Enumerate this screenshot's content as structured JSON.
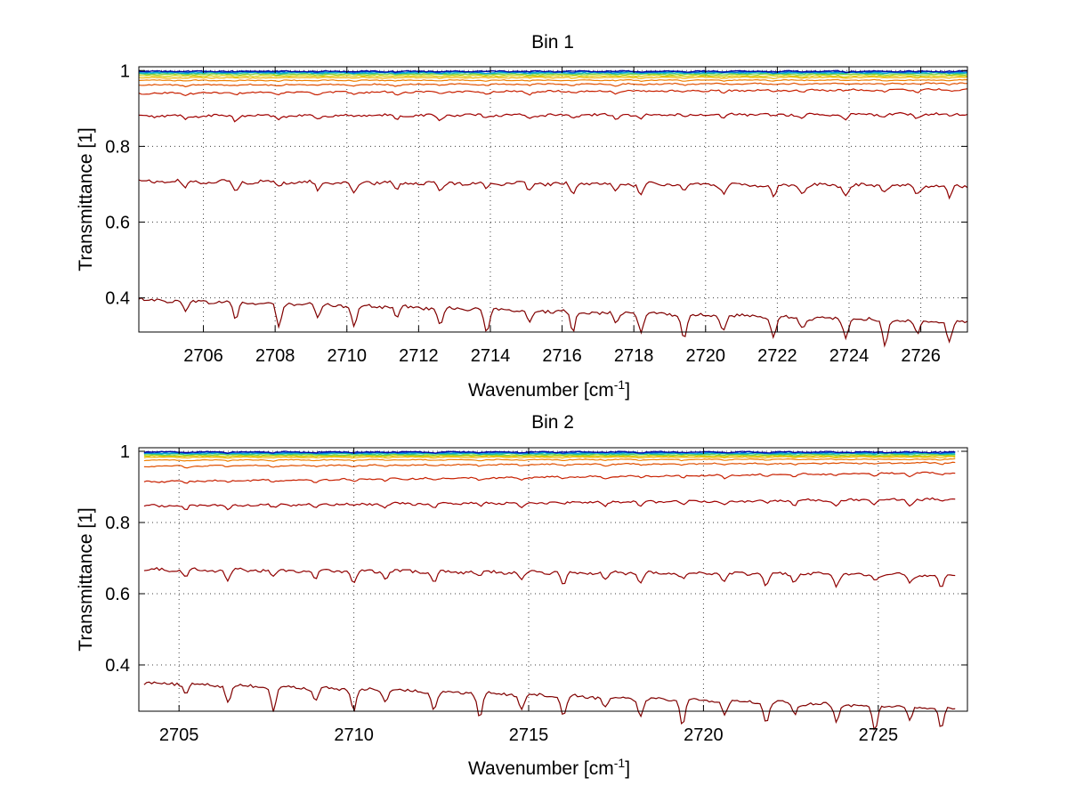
{
  "chart_data": [
    {
      "type": "line",
      "title": "Bin 1",
      "xlabel": "Wavenumber [cm",
      "xlabel_sup": "-1",
      "xlabel_close": "]",
      "ylabel": "Transmittance [1]",
      "xlim": [
        2704.2,
        2727.3
      ],
      "ylim": [
        0.31,
        1.01
      ],
      "xticks": [
        2706,
        2708,
        2710,
        2712,
        2714,
        2716,
        2718,
        2720,
        2722,
        2724,
        2726
      ],
      "xtick_labels": [
        "2706",
        "2708",
        "2710",
        "2712",
        "2714",
        "2716",
        "2718",
        "2720",
        "2722",
        "2724",
        "2726"
      ],
      "yticks": [
        0.4,
        0.6,
        0.8,
        1.0
      ],
      "ytick_labels": [
        "0.4",
        "0.6",
        "0.8",
        "1"
      ],
      "grid": true,
      "x_range": [
        2704.2,
        2727.3
      ],
      "dips": [
        2705.5,
        2706.9,
        2708.1,
        2709.2,
        2710.2,
        2711.4,
        2712.6,
        2713.9,
        2715.1,
        2716.3,
        2717.5,
        2718.2,
        2719.4,
        2720.5,
        2721.9,
        2722.7,
        2723.9,
        2725.0,
        2725.9,
        2726.8
      ],
      "series": [
        {
          "name": "s1",
          "color": "#0000a0",
          "start": 0.998,
          "end": 0.998,
          "noise": 0.0015
        },
        {
          "name": "s2",
          "color": "#0050d0",
          "start": 0.997,
          "end": 0.997,
          "noise": 0.0015
        },
        {
          "name": "s3",
          "color": "#00a0e0",
          "start": 0.995,
          "end": 0.995,
          "noise": 0.0012
        },
        {
          "name": "s4",
          "color": "#20c0a0",
          "start": 0.993,
          "end": 0.993,
          "noise": 0.001
        },
        {
          "name": "s5",
          "color": "#80d040",
          "start": 0.99,
          "end": 0.99,
          "noise": 0.001
        },
        {
          "name": "s6",
          "color": "#d0d000",
          "start": 0.986,
          "end": 0.986,
          "noise": 0.001
        },
        {
          "name": "s7",
          "color": "#f0b000",
          "start": 0.981,
          "end": 0.982,
          "noise": 0.001
        },
        {
          "name": "s8",
          "color": "#f08000",
          "start": 0.974,
          "end": 0.975,
          "noise": 0.001
        },
        {
          "name": "s9",
          "color": "#e05000",
          "start": 0.962,
          "end": 0.966,
          "noise": 0.0015
        },
        {
          "name": "s10",
          "color": "#c82000",
          "start": 0.94,
          "end": 0.95,
          "noise": 0.002
        },
        {
          "name": "s11",
          "color": "#a00000",
          "start": 0.88,
          "end": 0.885,
          "noise": 0.003
        },
        {
          "name": "s12",
          "color": "#900000",
          "start": 0.708,
          "end": 0.695,
          "noise": 0.004
        },
        {
          "name": "s13",
          "color": "#800000",
          "start": 0.395,
          "end": 0.335,
          "noise": 0.004
        }
      ]
    },
    {
      "type": "line",
      "title": "Bin 2",
      "xlabel": "Wavenumber [cm",
      "xlabel_sup": "-1",
      "xlabel_close": "]",
      "ylabel": "Transmittance [1]",
      "xlim": [
        2703.85,
        2727.55
      ],
      "ylim": [
        0.27,
        1.01
      ],
      "xticks": [
        2705,
        2710,
        2715,
        2720,
        2725
      ],
      "xtick_labels": [
        "2705",
        "2710",
        "2715",
        "2720",
        "2725"
      ],
      "yticks": [
        0.4,
        0.6,
        0.8,
        1.0
      ],
      "ytick_labels": [
        "0.4",
        "0.6",
        "0.8",
        "1"
      ],
      "grid": true,
      "x_range": [
        2704.0,
        2727.2
      ],
      "dips": [
        2705.2,
        2706.4,
        2707.7,
        2708.9,
        2710.0,
        2710.9,
        2712.3,
        2713.6,
        2714.8,
        2716.0,
        2717.2,
        2718.2,
        2719.4,
        2720.6,
        2721.8,
        2722.6,
        2723.8,
        2724.9,
        2725.9,
        2726.8
      ],
      "series": [
        {
          "name": "s1",
          "color": "#0000a0",
          "start": 0.998,
          "end": 0.998,
          "noise": 0.0015
        },
        {
          "name": "s2",
          "color": "#0050d0",
          "start": 0.997,
          "end": 0.997,
          "noise": 0.0015
        },
        {
          "name": "s3",
          "color": "#00a0e0",
          "start": 0.995,
          "end": 0.995,
          "noise": 0.0012
        },
        {
          "name": "s4",
          "color": "#20c0a0",
          "start": 0.993,
          "end": 0.993,
          "noise": 0.001
        },
        {
          "name": "s5",
          "color": "#80d040",
          "start": 0.99,
          "end": 0.99,
          "noise": 0.001
        },
        {
          "name": "s6",
          "color": "#d0d000",
          "start": 0.987,
          "end": 0.987,
          "noise": 0.001
        },
        {
          "name": "s7",
          "color": "#f0b000",
          "start": 0.983,
          "end": 0.984,
          "noise": 0.001
        },
        {
          "name": "s8",
          "color": "#f08000",
          "start": 0.975,
          "end": 0.978,
          "noise": 0.001
        },
        {
          "name": "s9",
          "color": "#e05000",
          "start": 0.958,
          "end": 0.968,
          "noise": 0.0015
        },
        {
          "name": "s10",
          "color": "#c82000",
          "start": 0.915,
          "end": 0.94,
          "noise": 0.002
        },
        {
          "name": "s11",
          "color": "#a00000",
          "start": 0.847,
          "end": 0.865,
          "noise": 0.003
        },
        {
          "name": "s12",
          "color": "#900000",
          "start": 0.668,
          "end": 0.652,
          "noise": 0.004
        },
        {
          "name": "s13",
          "color": "#800000",
          "start": 0.35,
          "end": 0.278,
          "noise": 0.004
        }
      ]
    }
  ]
}
